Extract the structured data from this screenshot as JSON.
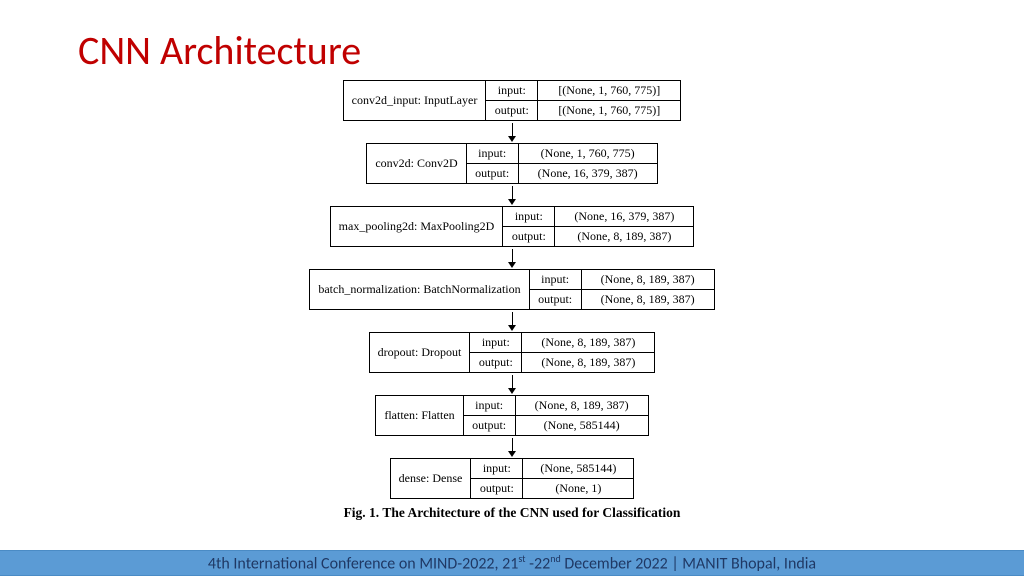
{
  "title": "CNN Architecture",
  "caption": "Fig. 1.  The Architecture of the CNN used for Classification",
  "footer": {
    "prefix": "4th International Conference on MIND-2022, 21",
    "sup1": "st",
    "mid": " -22",
    "sup2": "nd",
    "suffix": " December 2022 | MANIT Bhopal, India"
  },
  "labels": {
    "input": "input:",
    "output": "output:"
  },
  "nodes": [
    {
      "layer": "conv2d_input: InputLayer",
      "input": "[(None, 1, 760, 775)]",
      "output": "[(None, 1, 760, 775)]",
      "valw": 142
    },
    {
      "layer": "conv2d: Conv2D",
      "input": "(None, 1, 760, 775)",
      "output": "(None, 16, 379, 387)",
      "valw": 138
    },
    {
      "layer": "max_pooling2d: MaxPooling2D",
      "input": "(None, 16, 379, 387)",
      "output": "(None, 8, 189, 387)",
      "valw": 138
    },
    {
      "layer": "batch_normalization: BatchNormalization",
      "input": "(None, 8, 189, 387)",
      "output": "(None, 8, 189, 387)",
      "valw": 132
    },
    {
      "layer": "dropout: Dropout",
      "input": "(None, 8, 189, 387)",
      "output": "(None, 8, 189, 387)",
      "valw": 132
    },
    {
      "layer": "flatten: Flatten",
      "input": "(None, 8, 189, 387)",
      "output": "(None, 585144)",
      "valw": 132
    },
    {
      "layer": "dense: Dense",
      "input": "(None, 585144)",
      "output": "(None, 1)",
      "valw": 110
    }
  ],
  "style": {
    "title_color": "#c00000",
    "footer_bg": "#5b9bd5",
    "footer_text": "#1f3864",
    "border": "#000000",
    "bg": "#ffffff"
  }
}
